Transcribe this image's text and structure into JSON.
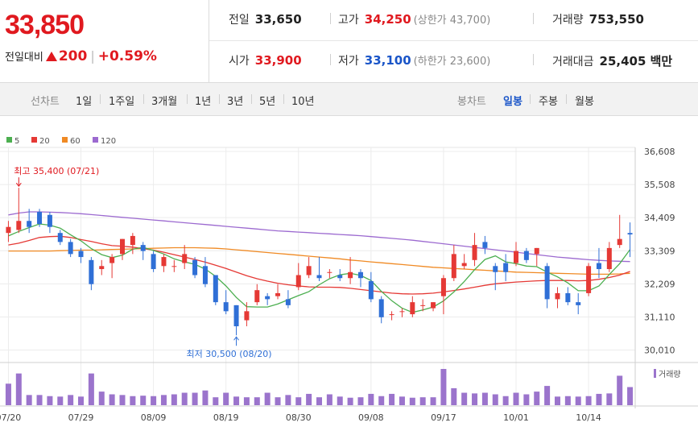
{
  "quote": {
    "price": "33,850",
    "change_label": "전일대비",
    "change": "200",
    "change_pct": "+0.59%",
    "stats": {
      "prev_close_label": "전일",
      "prev_close": "33,650",
      "high_label": "고가",
      "high": "34,250",
      "upper_limit": "(상한가 43,700)",
      "volume_label": "거래량",
      "volume": "753,550",
      "open_label": "시가",
      "open": "33,900",
      "low_label": "저가",
      "low": "33,100",
      "lower_limit": "(하한가 23,600)",
      "amount_label": "거래대금",
      "amount": "25,405 백만"
    }
  },
  "toolbar": {
    "line_chart_label": "선차트",
    "periods": [
      "1일",
      "1주일",
      "3개월",
      "1년",
      "3년",
      "5년",
      "10년"
    ],
    "candle_label": "봉차트",
    "candle_options": [
      "일봉",
      "주봉",
      "월봉"
    ],
    "candle_selected": "일봉"
  },
  "chart_data": {
    "type": "candlestick",
    "legend": [
      {
        "name": "5",
        "color": "#4caf50"
      },
      {
        "name": "20",
        "color": "#e53935"
      },
      {
        "name": "60",
        "color": "#f08a24"
      },
      {
        "name": "120",
        "color": "#9c6ad0"
      }
    ],
    "volume_label": "거래량",
    "y_ticks": [
      "36,608",
      "35,508",
      "34,409",
      "33,309",
      "32,209",
      "31,110",
      "30,010"
    ],
    "ylim": [
      29650,
      36608
    ],
    "x_ticks": [
      "07/20",
      "07/29",
      "08/09",
      "08/19",
      "08/30",
      "09/08",
      "09/17",
      "10/01",
      "10/14"
    ],
    "x_tick_index": [
      0,
      7,
      14,
      21,
      28,
      35,
      42,
      49,
      56
    ],
    "annotations": {
      "high": {
        "text": "최고 35,400 (07/21)",
        "index": 1,
        "value": 35400
      },
      "low": {
        "text": "최저 30,500 (08/20)",
        "index": 22,
        "value": 30500
      }
    },
    "candles": [
      [
        33900,
        34300,
        33600,
        34100
      ],
      [
        34000,
        35400,
        33900,
        34300
      ],
      [
        34300,
        34700,
        33900,
        34100
      ],
      [
        34600,
        34700,
        34100,
        34200
      ],
      [
        34500,
        34600,
        33900,
        34100
      ],
      [
        33900,
        34000,
        33500,
        33600
      ],
      [
        33600,
        33700,
        33100,
        33200
      ],
      [
        33300,
        33400,
        32900,
        33100
      ],
      [
        33000,
        33100,
        32000,
        32200
      ],
      [
        32700,
        33000,
        32500,
        32800
      ],
      [
        32900,
        33200,
        32400,
        33100
      ],
      [
        33200,
        33700,
        33000,
        33700
      ],
      [
        33500,
        33900,
        33200,
        33800
      ],
      [
        33500,
        33600,
        33000,
        33300
      ],
      [
        33200,
        33300,
        32600,
        32700
      ],
      [
        32800,
        33200,
        32600,
        33100
      ],
      [
        32800,
        33000,
        32600,
        32800
      ],
      [
        32900,
        33500,
        32700,
        33200
      ],
      [
        33000,
        33100,
        32400,
        32500
      ],
      [
        32800,
        33100,
        32100,
        32200
      ],
      [
        32500,
        32500,
        31500,
        31600
      ],
      [
        31600,
        32000,
        31200,
        31300
      ],
      [
        31500,
        31500,
        30500,
        30800
      ],
      [
        31000,
        31600,
        30800,
        31300
      ],
      [
        31600,
        32200,
        31500,
        32000
      ],
      [
        31800,
        31900,
        31500,
        31700
      ],
      [
        31800,
        32200,
        31700,
        31900
      ],
      [
        31700,
        32000,
        31400,
        31500
      ],
      [
        32100,
        32900,
        32000,
        32500
      ],
      [
        32500,
        33100,
        32400,
        32800
      ],
      [
        32500,
        33100,
        32300,
        32400
      ],
      [
        32600,
        32700,
        32400,
        32600
      ],
      [
        32500,
        32700,
        32300,
        32400
      ],
      [
        32400,
        33100,
        32200,
        32600
      ],
      [
        32600,
        32700,
        32100,
        32400
      ],
      [
        32300,
        32600,
        31600,
        31700
      ],
      [
        31700,
        31800,
        30900,
        31100
      ],
      [
        31200,
        31300,
        31000,
        31200
      ],
      [
        31300,
        31400,
        31100,
        31300
      ],
      [
        31200,
        31800,
        31100,
        31600
      ],
      [
        31500,
        31700,
        31300,
        31500
      ],
      [
        31400,
        31600,
        31300,
        31600
      ],
      [
        31800,
        32500,
        31200,
        32400
      ],
      [
        32400,
        33500,
        32300,
        33200
      ],
      [
        32800,
        33200,
        32700,
        32900
      ],
      [
        33000,
        33900,
        32800,
        33500
      ],
      [
        33600,
        33800,
        33200,
        33400
      ],
      [
        32800,
        32900,
        32000,
        32600
      ],
      [
        32900,
        33200,
        32300,
        32600
      ],
      [
        32900,
        33600,
        32800,
        33300
      ],
      [
        33300,
        33400,
        32900,
        33000
      ],
      [
        33200,
        33400,
        32800,
        33400
      ],
      [
        32800,
        32900,
        31400,
        31700
      ],
      [
        31700,
        32100,
        31400,
        31900
      ],
      [
        31900,
        32100,
        31500,
        31600
      ],
      [
        31600,
        31900,
        31200,
        31500
      ],
      [
        31900,
        32900,
        31800,
        32800
      ],
      [
        32900,
        33400,
        32400,
        32700
      ],
      [
        32700,
        33600,
        32600,
        33400
      ],
      [
        33500,
        34500,
        33400,
        33700
      ],
      [
        33900,
        34250,
        33100,
        33850
      ]
    ],
    "volumes": [
      95,
      140,
      45,
      45,
      40,
      38,
      45,
      38,
      140,
      60,
      48,
      45,
      40,
      42,
      40,
      45,
      48,
      55,
      55,
      65,
      35,
      55,
      38,
      35,
      35,
      55,
      35,
      45,
      35,
      50,
      35,
      48,
      38,
      33,
      35,
      50,
      40,
      50,
      38,
      33,
      35,
      35,
      160,
      75,
      55,
      52,
      55,
      48,
      40,
      55,
      48,
      60,
      85,
      38,
      40,
      38,
      40,
      50,
      52,
      130,
      80
    ],
    "ma": {
      "5": [
        33800,
        33950,
        34080,
        34200,
        34160,
        34060,
        33840,
        33640,
        33380,
        33180,
        33080,
        33160,
        33360,
        33420,
        33320,
        33200,
        33040,
        32940,
        32860,
        32700,
        32460,
        32140,
        31760,
        31450,
        31440,
        31440,
        31540,
        31680,
        31820,
        31950,
        32180,
        32380,
        32510,
        32560,
        32490,
        32320,
        31960,
        31650,
        31400,
        31260,
        31340,
        31440,
        31640,
        31940,
        32290,
        32680,
        33020,
        33140,
        32940,
        32880,
        32800,
        32780,
        32600,
        32440,
        32240,
        31980,
        31980,
        32140,
        32520,
        32880,
        33350
      ],
      "20": [
        33500,
        33560,
        33650,
        33750,
        33780,
        33790,
        33750,
        33680,
        33620,
        33540,
        33480,
        33460,
        33430,
        33380,
        33330,
        33260,
        33180,
        33100,
        33020,
        32930,
        32830,
        32720,
        32600,
        32480,
        32380,
        32300,
        32230,
        32180,
        32140,
        32110,
        32100,
        32100,
        32090,
        32060,
        32020,
        31980,
        31940,
        31900,
        31880,
        31870,
        31880,
        31900,
        31940,
        31990,
        32040,
        32100,
        32160,
        32210,
        32240,
        32270,
        32290,
        32310,
        32320,
        32320,
        32320,
        32310,
        32320,
        32360,
        32420,
        32500,
        32620
      ],
      "60": [
        33300,
        33300,
        33300,
        33300,
        33300,
        33310,
        33320,
        33330,
        33330,
        33340,
        33350,
        33360,
        33370,
        33380,
        33390,
        33400,
        33410,
        33410,
        33410,
        33400,
        33390,
        33370,
        33340,
        33310,
        33280,
        33250,
        33220,
        33190,
        33160,
        33130,
        33100,
        33070,
        33040,
        33000,
        32970,
        32940,
        32910,
        32880,
        32850,
        32820,
        32790,
        32760,
        32740,
        32720,
        32700,
        32680,
        32660,
        32640,
        32620,
        32600,
        32590,
        32580,
        32570,
        32560,
        32550,
        32540,
        32530,
        32530,
        32530,
        32540,
        32560
      ],
      "120": [
        34500,
        34560,
        34600,
        34600,
        34590,
        34580,
        34560,
        34540,
        34510,
        34480,
        34450,
        34420,
        34390,
        34360,
        34330,
        34300,
        34270,
        34240,
        34210,
        34180,
        34150,
        34120,
        34090,
        34060,
        34030,
        34000,
        33970,
        33950,
        33930,
        33910,
        33890,
        33870,
        33850,
        33830,
        33810,
        33780,
        33750,
        33720,
        33690,
        33660,
        33620,
        33580,
        33540,
        33500,
        33460,
        33420,
        33380,
        33340,
        33300,
        33260,
        33220,
        33180,
        33140,
        33100,
        33070,
        33040,
        33010,
        32990,
        32970,
        32960,
        32950
      ]
    }
  }
}
